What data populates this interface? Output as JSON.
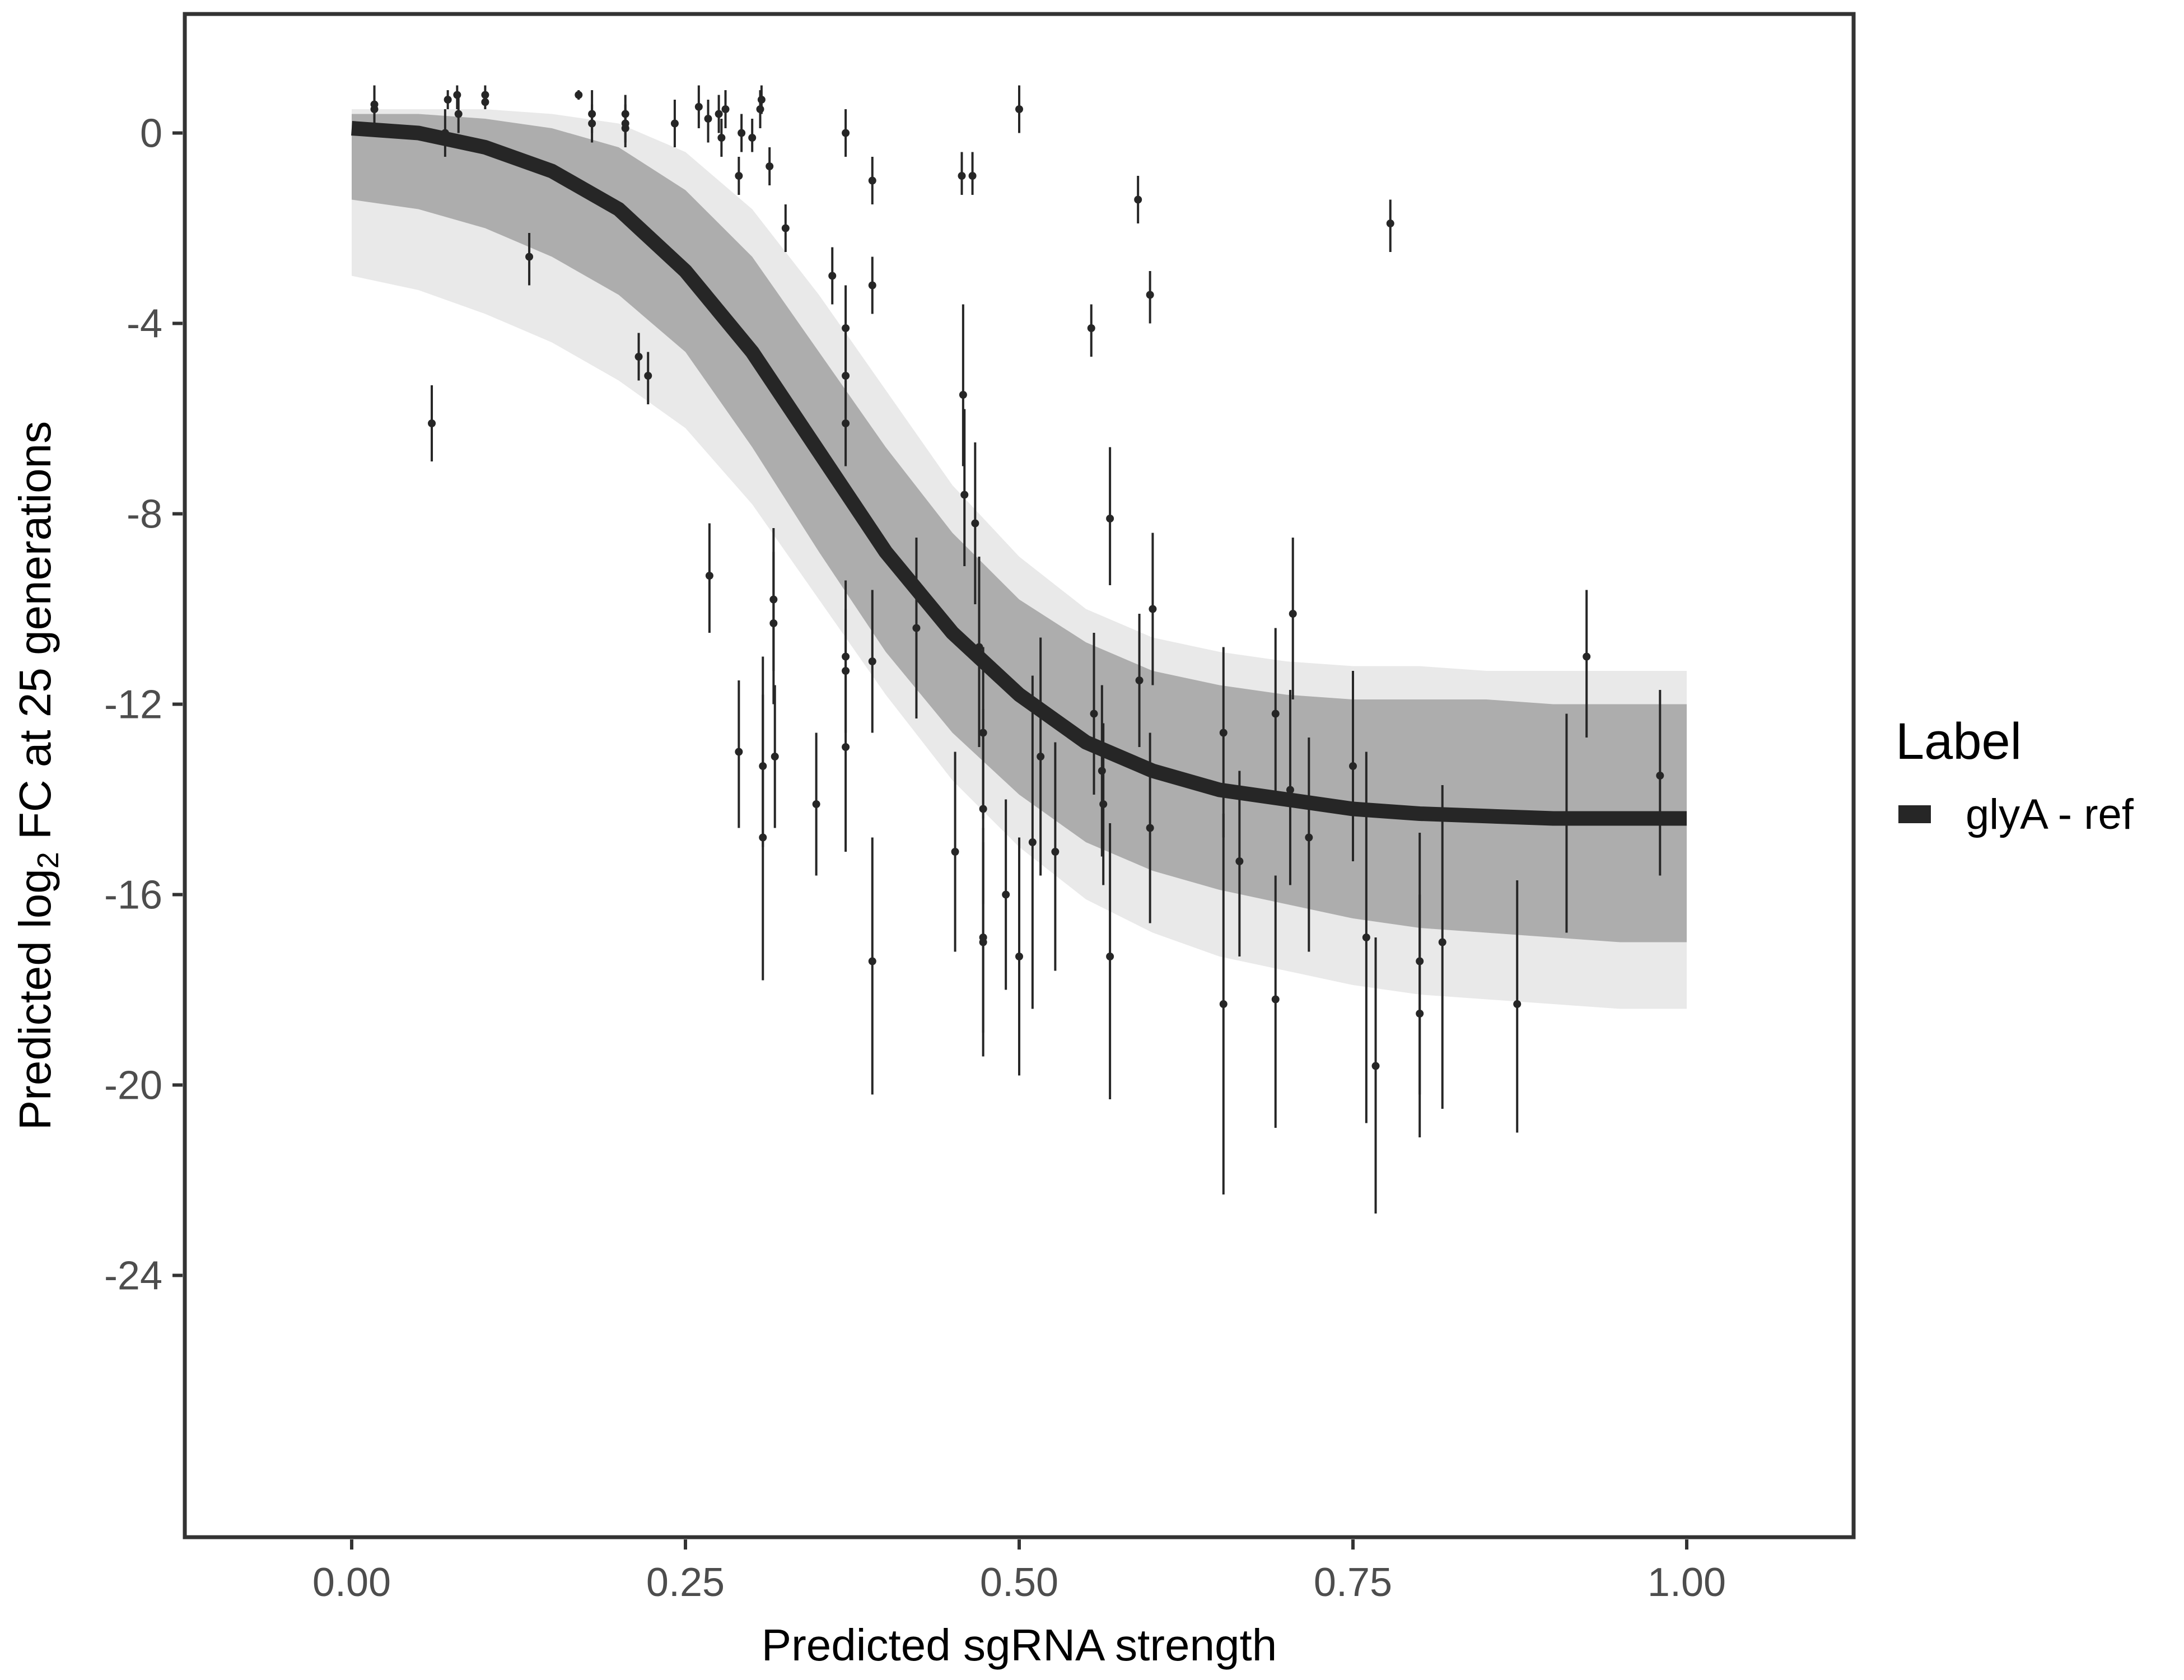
{
  "chart_data": {
    "type": "scatter",
    "xlabel": "Predicted sgRNA strength",
    "ylabel_prefix": "Predicted  log",
    "ylabel_subscript": "2",
    "ylabel_suffix": " FC at 25 generations",
    "xlim": [
      -0.125,
      1.125
    ],
    "ylim": [
      -29.5,
      2.5
    ],
    "x_ticks": [
      0.0,
      0.25,
      0.5,
      0.75,
      1.0
    ],
    "x_tick_labels": [
      "0.00",
      "0.25",
      "0.50",
      "0.75",
      "1.00"
    ],
    "y_ticks": [
      0,
      -4,
      -8,
      -12,
      -16,
      -20,
      -24
    ],
    "y_tick_labels": [
      "0",
      "-4",
      "-8",
      "-12",
      "-16",
      "-20",
      "-24"
    ],
    "grid": false,
    "legend": {
      "title": "Label",
      "position": "right",
      "entries": [
        {
          "label": "glyA - ref",
          "color": "#262626"
        }
      ]
    },
    "fit_curve": {
      "name": "glyA - ref",
      "color": "#262626",
      "x": [
        0.0,
        0.05,
        0.1,
        0.15,
        0.2,
        0.25,
        0.3,
        0.35,
        0.4,
        0.45,
        0.5,
        0.55,
        0.6,
        0.65,
        0.7,
        0.75,
        0.8,
        0.85,
        0.9,
        0.95,
        1.0
      ],
      "y": [
        0.1,
        0.0,
        -0.3,
        -0.8,
        -1.6,
        -2.9,
        -4.6,
        -6.7,
        -8.8,
        -10.5,
        -11.8,
        -12.8,
        -13.4,
        -13.8,
        -14.0,
        -14.2,
        -14.3,
        -14.35,
        -14.4,
        -14.4,
        -14.4
      ]
    },
    "posterior_band": {
      "color": "#a6a6a6",
      "x": [
        0.0,
        0.05,
        0.1,
        0.15,
        0.2,
        0.25,
        0.3,
        0.35,
        0.4,
        0.45,
        0.5,
        0.55,
        0.6,
        0.65,
        0.7,
        0.75,
        0.8,
        0.85,
        0.9,
        0.95,
        1.0
      ],
      "upper": [
        0.4,
        0.4,
        0.3,
        0.1,
        -0.3,
        -1.2,
        -2.6,
        -4.6,
        -6.6,
        -8.4,
        -9.8,
        -10.7,
        -11.3,
        -11.6,
        -11.8,
        -11.9,
        -11.9,
        -11.9,
        -12.0,
        -12.0,
        -12.0
      ],
      "lower": [
        -1.4,
        -1.6,
        -2.0,
        -2.6,
        -3.4,
        -4.6,
        -6.6,
        -8.8,
        -10.9,
        -12.6,
        -13.9,
        -14.9,
        -15.5,
        -15.9,
        -16.2,
        -16.5,
        -16.7,
        -16.8,
        -16.9,
        -17.0,
        -17.0
      ],
      "outer_upper": [
        0.5,
        0.5,
        0.5,
        0.4,
        0.2,
        -0.4,
        -1.6,
        -3.4,
        -5.4,
        -7.4,
        -8.9,
        -10.0,
        -10.6,
        -10.9,
        -11.1,
        -11.2,
        -11.2,
        -11.3,
        -11.3,
        -11.3,
        -11.3
      ],
      "outer_lower": [
        -3.0,
        -3.3,
        -3.8,
        -4.4,
        -5.2,
        -6.2,
        -7.8,
        -9.8,
        -11.8,
        -13.6,
        -15.0,
        -16.1,
        -16.8,
        -17.3,
        -17.6,
        -17.9,
        -18.1,
        -18.2,
        -18.3,
        -18.4,
        -18.4
      ]
    },
    "points": [
      {
        "x": 0.017,
        "y": 0.5,
        "lo": 0.0,
        "hi": 1.0
      },
      {
        "x": 0.017,
        "y": 0.6,
        "lo": 0.3,
        "hi": 0.9
      },
      {
        "x": 0.07,
        "y": 0.0,
        "lo": -0.5,
        "hi": 0.5
      },
      {
        "x": 0.072,
        "y": 0.7,
        "lo": 0.5,
        "hi": 0.9
      },
      {
        "x": 0.079,
        "y": 0.8,
        "lo": 0.5,
        "hi": 1.0
      },
      {
        "x": 0.08,
        "y": 0.4,
        "lo": 0.0,
        "hi": 0.8
      },
      {
        "x": 0.1,
        "y": 0.8,
        "lo": 0.6,
        "hi": 1.0
      },
      {
        "x": 0.1,
        "y": 0.65,
        "lo": 0.5,
        "hi": 0.8
      },
      {
        "x": 0.06,
        "y": -6.1,
        "lo": -6.9,
        "hi": -5.3
      },
      {
        "x": 0.133,
        "y": -2.6,
        "lo": -3.2,
        "hi": -2.1
      },
      {
        "x": 0.17,
        "y": 0.8,
        "lo": 0.7,
        "hi": 0.9
      },
      {
        "x": 0.18,
        "y": 0.4,
        "lo": 0.0,
        "hi": 0.9
      },
      {
        "x": 0.18,
        "y": 0.2,
        "lo": -0.2,
        "hi": 0.6
      },
      {
        "x": 0.205,
        "y": 0.4,
        "lo": 0.0,
        "hi": 0.8
      },
      {
        "x": 0.205,
        "y": 0.1,
        "lo": -0.3,
        "hi": 0.5
      },
      {
        "x": 0.205,
        "y": 0.2,
        "lo": -0.2,
        "hi": 0.6
      },
      {
        "x": 0.215,
        "y": -4.7,
        "lo": -5.2,
        "hi": -4.2
      },
      {
        "x": 0.222,
        "y": -5.1,
        "lo": -5.7,
        "hi": -4.6
      },
      {
        "x": 0.242,
        "y": 0.2,
        "lo": -0.3,
        "hi": 0.7
      },
      {
        "x": 0.26,
        "y": 0.55,
        "lo": 0.1,
        "hi": 1.0
      },
      {
        "x": 0.267,
        "y": 0.3,
        "lo": -0.2,
        "hi": 0.7
      },
      {
        "x": 0.268,
        "y": -9.3,
        "lo": -10.5,
        "hi": -8.2
      },
      {
        "x": 0.275,
        "y": 0.4,
        "lo": 0.0,
        "hi": 0.8
      },
      {
        "x": 0.277,
        "y": -0.1,
        "lo": -0.5,
        "hi": 0.3
      },
      {
        "x": 0.28,
        "y": 0.5,
        "lo": 0.1,
        "hi": 0.9
      },
      {
        "x": 0.29,
        "y": -0.9,
        "lo": -1.3,
        "hi": -0.5
      },
      {
        "x": 0.292,
        "y": 0.0,
        "lo": -0.4,
        "hi": 0.4
      },
      {
        "x": 0.29,
        "y": -13.0,
        "lo": -14.6,
        "hi": -11.5
      },
      {
        "x": 0.3,
        "y": -0.1,
        "lo": -0.4,
        "hi": 0.3
      },
      {
        "x": 0.307,
        "y": 0.7,
        "lo": 0.4,
        "hi": 1.0
      },
      {
        "x": 0.306,
        "y": 0.5,
        "lo": 0.1,
        "hi": 0.9
      },
      {
        "x": 0.308,
        "y": -13.3,
        "lo": -15.0,
        "hi": -11.0
      },
      {
        "x": 0.308,
        "y": -14.8,
        "lo": -17.8,
        "hi": -11.8
      },
      {
        "x": 0.313,
        "y": -0.7,
        "lo": -1.1,
        "hi": -0.3
      },
      {
        "x": 0.316,
        "y": -9.8,
        "lo": -11.3,
        "hi": -8.3
      },
      {
        "x": 0.316,
        "y": -10.3,
        "lo": -12.0,
        "hi": -8.8
      },
      {
        "x": 0.317,
        "y": -13.1,
        "lo": -14.6,
        "hi": -11.6
      },
      {
        "x": 0.325,
        "y": -2.0,
        "lo": -2.5,
        "hi": -1.5
      },
      {
        "x": 0.348,
        "y": -14.1,
        "lo": -15.6,
        "hi": -12.6
      },
      {
        "x": 0.36,
        "y": -3.0,
        "lo": -3.6,
        "hi": -2.4
      },
      {
        "x": 0.37,
        "y": 0.0,
        "lo": -0.5,
        "hi": 0.5
      },
      {
        "x": 0.37,
        "y": -4.1,
        "lo": -5.0,
        "hi": -3.2
      },
      {
        "x": 0.37,
        "y": -5.1,
        "lo": -6.0,
        "hi": -4.2
      },
      {
        "x": 0.37,
        "y": -6.1,
        "lo": -7.0,
        "hi": -5.2
      },
      {
        "x": 0.37,
        "y": -11.0,
        "lo": -12.6,
        "hi": -9.4
      },
      {
        "x": 0.37,
        "y": -11.3,
        "lo": -12.6,
        "hi": -10.0
      },
      {
        "x": 0.37,
        "y": -12.9,
        "lo": -15.1,
        "hi": -10.7
      },
      {
        "x": 0.39,
        "y": -1.0,
        "lo": -1.5,
        "hi": -0.5
      },
      {
        "x": 0.39,
        "y": -3.2,
        "lo": -3.8,
        "hi": -2.6
      },
      {
        "x": 0.39,
        "y": -11.1,
        "lo": -12.6,
        "hi": -9.6
      },
      {
        "x": 0.39,
        "y": -17.4,
        "lo": -20.2,
        "hi": -14.8
      },
      {
        "x": 0.423,
        "y": -10.4,
        "lo": -12.3,
        "hi": -8.5
      },
      {
        "x": 0.452,
        "y": -15.1,
        "lo": -17.2,
        "hi": -13.0
      },
      {
        "x": 0.457,
        "y": -0.9,
        "lo": -1.3,
        "hi": -0.4
      },
      {
        "x": 0.458,
        "y": -5.5,
        "lo": -7.0,
        "hi": -3.6
      },
      {
        "x": 0.459,
        "y": -7.6,
        "lo": -9.1,
        "hi": -5.8
      },
      {
        "x": 0.465,
        "y": -0.9,
        "lo": -1.3,
        "hi": -0.4
      },
      {
        "x": 0.467,
        "y": -8.2,
        "lo": -9.9,
        "hi": -6.5
      },
      {
        "x": 0.47,
        "y": -10.8,
        "lo": -12.9,
        "hi": -8.9
      },
      {
        "x": 0.473,
        "y": -12.6,
        "lo": -14.4,
        "hi": -10.8
      },
      {
        "x": 0.473,
        "y": -14.2,
        "lo": -16.2,
        "hi": -12.1
      },
      {
        "x": 0.473,
        "y": -16.9,
        "lo": -18.9,
        "hi": -14.9
      },
      {
        "x": 0.473,
        "y": -17.0,
        "lo": -19.4,
        "hi": -14.6
      },
      {
        "x": 0.49,
        "y": -16.0,
        "lo": -18.0,
        "hi": -14.0
      },
      {
        "x": 0.5,
        "y": 0.5,
        "lo": 0.0,
        "hi": 1.0
      },
      {
        "x": 0.5,
        "y": -17.3,
        "lo": -19.8,
        "hi": -14.8
      },
      {
        "x": 0.51,
        "y": -14.9,
        "lo": -18.4,
        "hi": -11.4
      },
      {
        "x": 0.516,
        "y": -13.1,
        "lo": -15.6,
        "hi": -10.6
      },
      {
        "x": 0.527,
        "y": -15.1,
        "lo": -17.6,
        "hi": -12.8
      },
      {
        "x": 0.554,
        "y": -4.1,
        "lo": -4.7,
        "hi": -3.6
      },
      {
        "x": 0.556,
        "y": -12.2,
        "lo": -13.9,
        "hi": -10.5
      },
      {
        "x": 0.562,
        "y": -13.4,
        "lo": -15.2,
        "hi": -11.6
      },
      {
        "x": 0.563,
        "y": -14.1,
        "lo": -15.8,
        "hi": -12.4
      },
      {
        "x": 0.568,
        "y": -8.1,
        "lo": -9.5,
        "hi": -6.6
      },
      {
        "x": 0.568,
        "y": -17.3,
        "lo": -20.3,
        "hi": -14.5
      },
      {
        "x": 0.589,
        "y": -1.4,
        "lo": -1.9,
        "hi": -0.9
      },
      {
        "x": 0.59,
        "y": -11.5,
        "lo": -12.9,
        "hi": -10.1
      },
      {
        "x": 0.598,
        "y": -3.4,
        "lo": -4.0,
        "hi": -2.9
      },
      {
        "x": 0.6,
        "y": -10.0,
        "lo": -11.6,
        "hi": -8.4
      },
      {
        "x": 0.598,
        "y": -14.6,
        "lo": -16.6,
        "hi": -12.6
      },
      {
        "x": 0.653,
        "y": -12.6,
        "lo": -14.8,
        "hi": -10.8
      },
      {
        "x": 0.653,
        "y": -18.3,
        "lo": -22.3,
        "hi": -14.3
      },
      {
        "x": 0.665,
        "y": -15.3,
        "lo": -17.3,
        "hi": -13.4
      },
      {
        "x": 0.692,
        "y": -12.2,
        "lo": -14.0,
        "hi": -10.4
      },
      {
        "x": 0.692,
        "y": -18.2,
        "lo": -20.9,
        "hi": -15.6
      },
      {
        "x": 0.705,
        "y": -10.1,
        "lo": -11.9,
        "hi": -8.5
      },
      {
        "x": 0.703,
        "y": -13.8,
        "lo": -15.8,
        "hi": -11.7
      },
      {
        "x": 0.717,
        "y": -14.8,
        "lo": -17.2,
        "hi": -12.7
      },
      {
        "x": 0.75,
        "y": -13.3,
        "lo": -15.3,
        "hi": -11.3
      },
      {
        "x": 0.76,
        "y": -16.9,
        "lo": -20.8,
        "hi": -13.0
      },
      {
        "x": 0.767,
        "y": -19.6,
        "lo": -22.7,
        "hi": -16.9
      },
      {
        "x": 0.778,
        "y": -1.9,
        "lo": -2.5,
        "hi": -1.4
      },
      {
        "x": 0.8,
        "y": -17.4,
        "lo": -20.2,
        "hi": -14.7
      },
      {
        "x": 0.8,
        "y": -18.5,
        "lo": -21.1,
        "hi": -16.0
      },
      {
        "x": 0.817,
        "y": -17.0,
        "lo": -20.5,
        "hi": -13.7
      },
      {
        "x": 0.873,
        "y": -18.3,
        "lo": -21.0,
        "hi": -15.7
      },
      {
        "x": 0.91,
        "y": -14.4,
        "lo": -16.8,
        "hi": -12.2
      },
      {
        "x": 0.925,
        "y": -11.0,
        "lo": -12.7,
        "hi": -9.6
      },
      {
        "x": 0.98,
        "y": -13.5,
        "lo": -15.6,
        "hi": -11.7
      }
    ]
  }
}
